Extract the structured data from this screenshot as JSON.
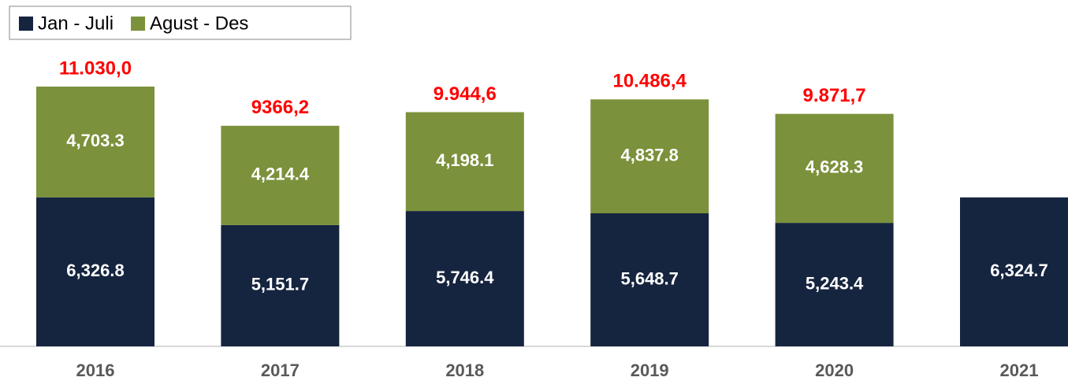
{
  "chart_data": {
    "type": "stacked_bar",
    "categories": [
      "2016",
      "2017",
      "2018",
      "2019",
      "2020",
      "2021"
    ],
    "series": [
      {
        "name": "Jan - Juli",
        "color": "#15243f",
        "values": [
          6326.8,
          5151.7,
          5746.4,
          5648.7,
          5243.4,
          6324.7
        ],
        "value_labels": [
          "6,326.8",
          "5,151.7",
          "5,746.4",
          "5,648.7",
          "5,243.4",
          "6,324.7"
        ]
      },
      {
        "name": "Agust - Des",
        "color": "#7b913b",
        "values": [
          4703.3,
          4214.4,
          4198.1,
          4837.8,
          4628.3,
          null
        ],
        "value_labels": [
          "4,703.3",
          "4,214.4",
          "4,198.1",
          "4,837.8",
          "4,628.3",
          null
        ]
      }
    ],
    "totals": [
      11030.0,
      9366.2,
      9944.6,
      10486.4,
      9871.7,
      null
    ],
    "total_labels": [
      "11.030,0",
      "9366,2",
      "9.944,6",
      "10.486,4",
      "9.871,7",
      null
    ],
    "total_color": "#ff0000"
  }
}
